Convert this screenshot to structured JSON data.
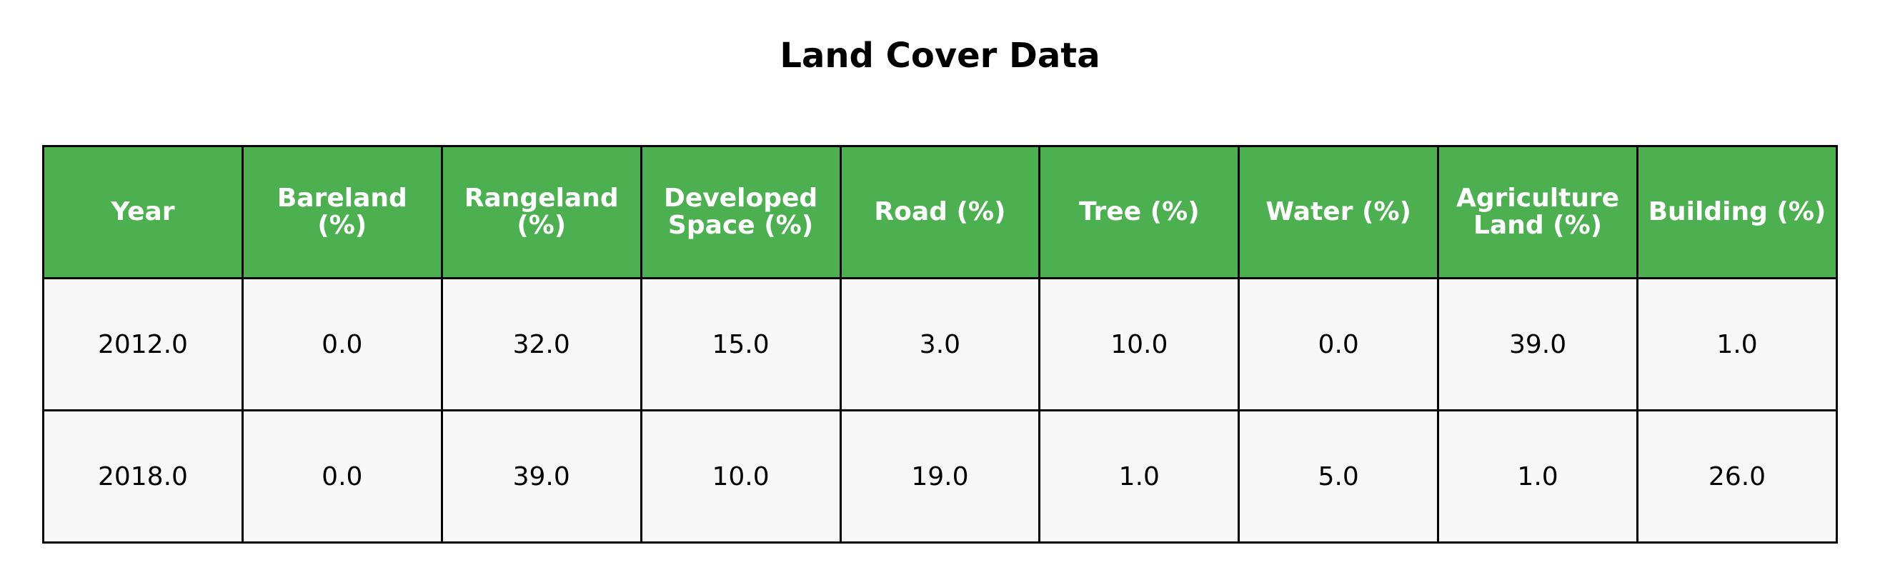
{
  "chart_data": {
    "type": "table",
    "title": "Land Cover Data",
    "columns": [
      "Year",
      "Bareland\n(%)",
      "Rangeland\n(%)",
      "Developed\nSpace (%)",
      "Road (%)",
      "Tree (%)",
      "Water (%)",
      "Agriculture\nLand (%)",
      "Building (%)"
    ],
    "rows": [
      [
        "2012.0",
        "0.0",
        "32.0",
        "15.0",
        "3.0",
        "10.0",
        "0.0",
        "39.0",
        "1.0"
      ],
      [
        "2018.0",
        "0.0",
        "39.0",
        "10.0",
        "19.0",
        "1.0",
        "5.0",
        "1.0",
        "26.0"
      ]
    ],
    "colors": {
      "header_bg": "#4caf50",
      "header_text": "#ffffff",
      "cell_bg": "#f7f7f7",
      "border": "#000000"
    }
  }
}
